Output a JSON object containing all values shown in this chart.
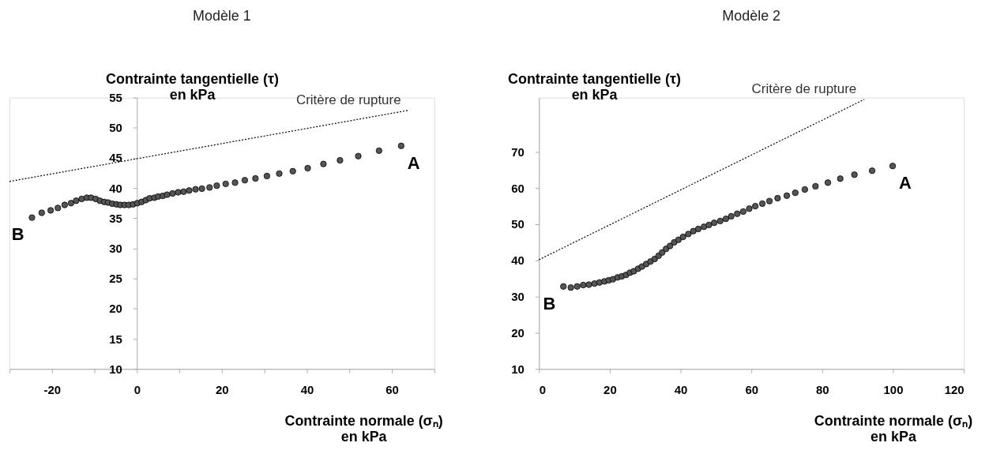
{
  "chart_data": [
    {
      "type": "scatter",
      "title": "Modèle 1",
      "xlabel": "Contrainte normale (σₙ)\nen kPa",
      "ylabel": "Contrainte tangentielle (τ)\nen kPa",
      "xlim": [
        -30,
        70
      ],
      "ylim": [
        10,
        55
      ],
      "xticks": [
        {
          "value": -30,
          "label": null
        },
        -20,
        {
          "value": -10,
          "label": null
        },
        0,
        {
          "value": 10,
          "label": null
        },
        20,
        {
          "value": 30,
          "label": null
        },
        40,
        {
          "value": 50,
          "label": null
        },
        60,
        {
          "value": 70,
          "label": null
        }
      ],
      "yticks": [
        10,
        15,
        20,
        25,
        30,
        35,
        40,
        45,
        50,
        55
      ],
      "grid": false,
      "series": [
        {
          "marker": "circle",
          "color": "#555555",
          "x": [
            -24.7,
            -22.4,
            -20.3,
            -18.6,
            -17.0,
            -15.5,
            -14.3,
            -13.0,
            -11.8,
            -10.8,
            -9.7,
            -8.7,
            -7.7,
            -6.8,
            -5.8,
            -4.8,
            -3.9,
            -2.9,
            -1.9,
            -0.9,
            0.1,
            1.1,
            2.1,
            3.0,
            4.1,
            5.0,
            6.1,
            7.1,
            8.4,
            9.7,
            11.0,
            12.3,
            13.8,
            15.3,
            17.1,
            18.8,
            20.9,
            23.1,
            25.4,
            27.9,
            30.6,
            33.5,
            36.7,
            40.2,
            43.9,
            47.8,
            52.1,
            57.0,
            62.2
          ],
          "values": [
            35.1,
            35.9,
            36.3,
            36.7,
            37.2,
            37.5,
            37.9,
            38.2,
            38.4,
            38.4,
            38.2,
            37.9,
            37.7,
            37.6,
            37.4,
            37.3,
            37.2,
            37.2,
            37.2,
            37.3,
            37.5,
            37.7,
            38.0,
            38.3,
            38.4,
            38.6,
            38.7,
            38.9,
            39.1,
            39.3,
            39.4,
            39.6,
            39.8,
            39.9,
            40.1,
            40.4,
            40.7,
            40.9,
            41.3,
            41.6,
            42.0,
            42.4,
            42.8,
            43.3,
            44.0,
            44.6,
            45.3,
            46.2,
            47.0
          ]
        },
        {
          "type": "line",
          "line_style": "dotted",
          "color": "#000000",
          "x": [
            -30,
            64
          ],
          "values": [
            41.1,
            52.9
          ]
        }
      ],
      "annotations": [
        "Critère de rupture",
        "A",
        "B"
      ]
    },
    {
      "type": "scatter",
      "title": "Modèle 2",
      "xlabel": "Contrainte normale (σₙ)\nen kPa",
      "ylabel": "Contrainte tangentielle (τ)\nen kPa",
      "xlim": [
        0,
        120
      ],
      "ylim": [
        10,
        85
      ],
      "xticks": [
        0,
        20,
        40,
        60,
        80,
        100,
        120
      ],
      "yticks": [
        10,
        20,
        30,
        40,
        50,
        60,
        70
      ],
      "grid": false,
      "series": [
        {
          "marker": "circle",
          "color": "#555555",
          "x": [
            6.9,
            9.0,
            10.8,
            12.5,
            14.1,
            15.7,
            17.1,
            18.5,
            19.7,
            20.9,
            22.2,
            23.4,
            24.6,
            25.7,
            26.8,
            28.0,
            29.1,
            30.3,
            31.5,
            32.7,
            33.8,
            34.8,
            35.9,
            37.0,
            38.2,
            39.4,
            40.7,
            42.2,
            43.6,
            45.0,
            46.6,
            48.0,
            49.5,
            51.2,
            52.8,
            54.3,
            56.0,
            57.7,
            59.4,
            61.1,
            63.1,
            65.1,
            67.4,
            70.0,
            72.4,
            75.1,
            78.1,
            81.6,
            85.1,
            89.1,
            94.1,
            99.9
          ],
          "values": [
            32.8,
            32.5,
            32.8,
            33.2,
            33.3,
            33.6,
            33.9,
            34.2,
            34.5,
            34.8,
            35.3,
            35.6,
            36.0,
            36.6,
            37.0,
            37.7,
            38.3,
            39.0,
            39.7,
            40.4,
            41.3,
            42.2,
            43.2,
            44.0,
            45.0,
            45.7,
            46.5,
            47.3,
            48.1,
            48.7,
            49.3,
            49.8,
            50.4,
            50.9,
            51.5,
            52.2,
            52.9,
            53.5,
            54.3,
            55.0,
            55.7,
            56.4,
            57.2,
            57.9,
            58.7,
            59.6,
            60.5,
            61.5,
            62.6,
            63.7,
            64.8,
            66.1
          ]
        },
        {
          "type": "line",
          "line_style": "dotted",
          "color": "#000000",
          "x": [
            0,
            91.9
          ],
          "values": [
            40.2,
            84.5
          ]
        }
      ],
      "annotations": [
        "Critère de rupture",
        "A",
        "B"
      ]
    }
  ]
}
